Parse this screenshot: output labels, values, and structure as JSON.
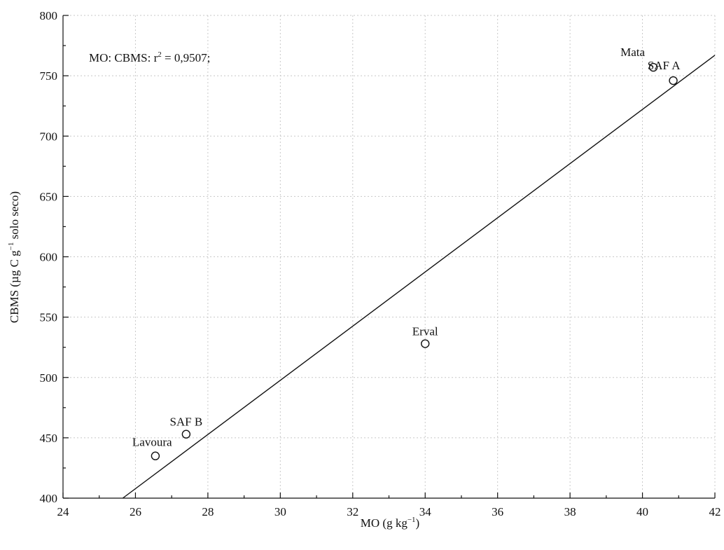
{
  "chart_data": {
    "type": "scatter",
    "annotation": "MO: CBMS: r",
    "annotation_sup": "2",
    "annotation_rest": " = 0,9507;",
    "xlabel": "MO (g kg",
    "xlabel_sup": "−1",
    "xlabel_end": ")",
    "ylabel": "CBMS (µg C g",
    "ylabel_sup": "−1",
    "ylabel_end": " solo seco)",
    "xlim": [
      24,
      42
    ],
    "ylim": [
      400,
      800
    ],
    "x_ticks": [
      24,
      26,
      28,
      30,
      32,
      34,
      36,
      38,
      40,
      42
    ],
    "y_ticks": [
      400,
      450,
      500,
      550,
      600,
      650,
      700,
      750,
      800
    ],
    "grid": true,
    "points": [
      {
        "label": "Mata",
        "x": 40.3,
        "y": 757
      },
      {
        "label": "SAF A",
        "x": 40.85,
        "y": 746
      },
      {
        "label": "Erval",
        "x": 34.0,
        "y": 528
      },
      {
        "label": "SAF B",
        "x": 27.4,
        "y": 453
      },
      {
        "label": "Lavoura",
        "x": 26.55,
        "y": 435
      }
    ],
    "fit_line": {
      "x": [
        25.65,
        42.0
      ],
      "y": [
        400,
        767
      ]
    }
  }
}
